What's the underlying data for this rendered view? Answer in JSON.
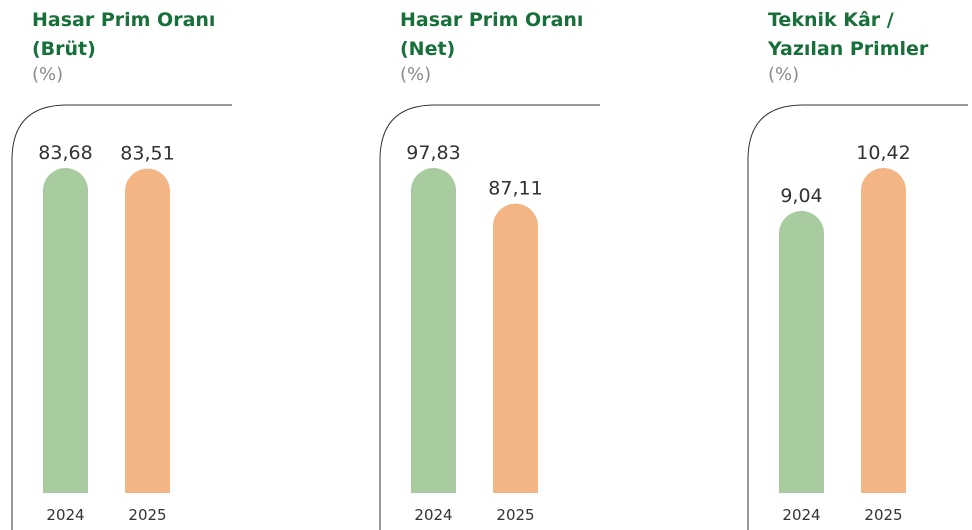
{
  "chart_data": [
    {
      "type": "bar",
      "title": "Hasar Prim Oranı (Brüt)",
      "subtitle": "(%)",
      "categories": [
        "2024",
        "2025"
      ],
      "values": [
        83.68,
        83.51
      ],
      "value_labels": [
        "83,68",
        "83,51"
      ],
      "colors": [
        "#a8cca0",
        "#f4b585"
      ]
    },
    {
      "type": "bar",
      "title": "Hasar Prim Oranı (Net)",
      "subtitle": "(%)",
      "categories": [
        "2024",
        "2025"
      ],
      "values": [
        97.83,
        87.11
      ],
      "value_labels": [
        "97,83",
        "87,11"
      ],
      "colors": [
        "#a8cca0",
        "#f4b585"
      ]
    },
    {
      "type": "bar",
      "title": "Teknik Kâr / Yazılan Primler",
      "subtitle": "(%)",
      "categories": [
        "2024",
        "2025"
      ],
      "values": [
        9.04,
        10.42
      ],
      "value_labels": [
        "9,04",
        "10,42"
      ],
      "colors": [
        "#a8cca0",
        "#f4b585"
      ]
    }
  ]
}
